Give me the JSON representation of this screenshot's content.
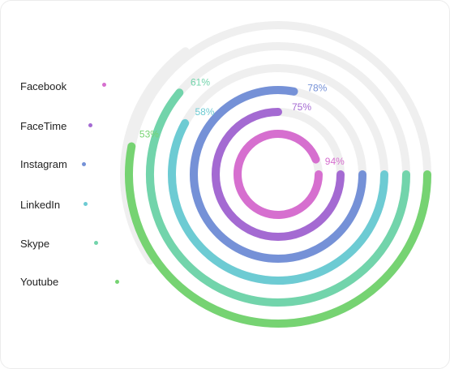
{
  "chart_data": {
    "type": "radial-bar",
    "series": [
      {
        "name": "Facebook",
        "value": 94,
        "label": "94%",
        "color": "#d66fcf"
      },
      {
        "name": "FaceTime",
        "value": 75,
        "label": "75%",
        "color": "#a46ad2"
      },
      {
        "name": "Instagram",
        "value": 78,
        "label": "78%",
        "color": "#7591d7"
      },
      {
        "name": "LinkedIn",
        "value": 58,
        "label": "58%",
        "color": "#6dcbd3"
      },
      {
        "name": "Skype",
        "value": 61,
        "label": "61%",
        "color": "#72d4ab"
      },
      {
        "name": "Youtube",
        "value": 53,
        "label": "53%",
        "color": "#76d372"
      }
    ],
    "max": 100,
    "track_color": "#efefef",
    "legend_position": "left"
  }
}
